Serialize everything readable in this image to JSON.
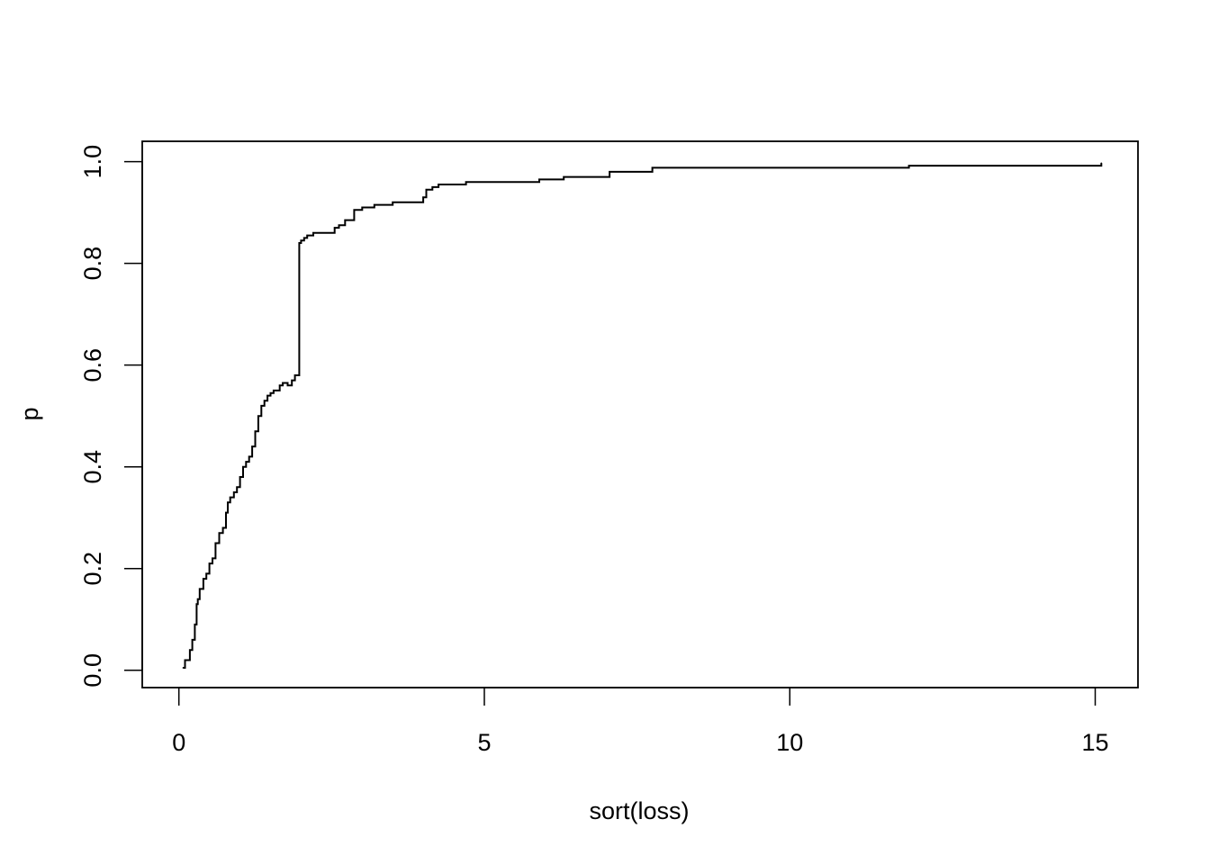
{
  "chart_data": {
    "type": "line",
    "title": "",
    "xlabel": "sort(loss)",
    "ylabel": "p",
    "xlim": [
      -0.6,
      15.7
    ],
    "ylim": [
      -0.034,
      1.04
    ],
    "x_ticks": [
      0,
      5,
      10,
      15
    ],
    "x_tick_labels": [
      "0",
      "5",
      "10",
      "15"
    ],
    "y_ticks": [
      0,
      0.2,
      0.4,
      0.6,
      0.8,
      1.0
    ],
    "y_tick_labels": [
      "0.0",
      "0.2",
      "0.4",
      "0.6",
      "0.8",
      "1.0"
    ],
    "grid": false,
    "series": [
      {
        "step": "post",
        "x": [
          0.07,
          0.1,
          0.18,
          0.22,
          0.26,
          0.29,
          0.31,
          0.34,
          0.4,
          0.45,
          0.5,
          0.55,
          0.6,
          0.66,
          0.72,
          0.77,
          0.8,
          0.84,
          0.9,
          0.95,
          1.0,
          1.05,
          1.1,
          1.15,
          1.2,
          1.25,
          1.3,
          1.35,
          1.4,
          1.45,
          1.5,
          1.55,
          1.6,
          1.65,
          1.7,
          1.78,
          1.85,
          1.9,
          1.97,
          2.0,
          2.05,
          2.1,
          2.2,
          2.3,
          2.55,
          2.62,
          2.72,
          2.87,
          3.0,
          3.2,
          3.5,
          4.0,
          4.05,
          4.15,
          4.25,
          4.7,
          5.9,
          6.3,
          7.05,
          7.75,
          11.95,
          15.1
        ],
        "y": [
          0.005,
          0.02,
          0.04,
          0.06,
          0.09,
          0.13,
          0.14,
          0.16,
          0.18,
          0.19,
          0.21,
          0.22,
          0.25,
          0.27,
          0.28,
          0.31,
          0.33,
          0.34,
          0.35,
          0.36,
          0.38,
          0.4,
          0.41,
          0.42,
          0.44,
          0.47,
          0.5,
          0.52,
          0.53,
          0.54,
          0.545,
          0.55,
          0.55,
          0.56,
          0.565,
          0.56,
          0.57,
          0.58,
          0.84,
          0.845,
          0.85,
          0.855,
          0.86,
          0.86,
          0.87,
          0.875,
          0.885,
          0.905,
          0.91,
          0.915,
          0.92,
          0.93,
          0.945,
          0.95,
          0.955,
          0.96,
          0.965,
          0.97,
          0.98,
          0.988,
          0.992,
          0.997
        ]
      }
    ]
  }
}
